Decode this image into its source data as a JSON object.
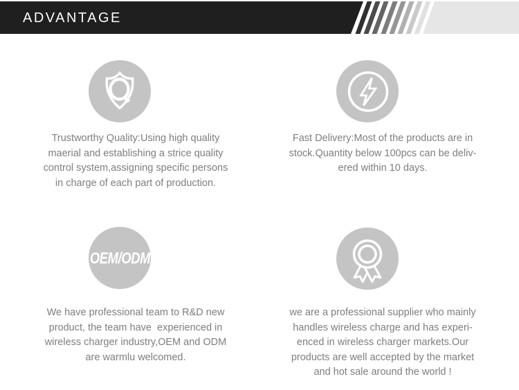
{
  "header": {
    "title": "ADVANTAGE",
    "bg_color": "#1f1f1f",
    "stripe_colors": [
      "#303030",
      "#4a4a4a",
      "#646464",
      "#7d7d7d",
      "#969696",
      "#b0b0b0",
      "#c9c9c9",
      "#e0e0e0"
    ],
    "tail_color": "#e6e6e6"
  },
  "features": [
    {
      "id": "trustworthy-quality",
      "icon": "shield-q-icon",
      "text": "Trustworthy Quality:Using high quality\nmaerial and establishing a strice quality\ncontrol system,assigning specific persons\nin charge of each part of production."
    },
    {
      "id": "fast-delivery",
      "icon": "lightning-bolt-icon",
      "text": "Fast Delivery:Most of the products are in\nstock.Quantity below 100pcs can be deliv-\nered within 10 days."
    },
    {
      "id": "oem-odm",
      "icon": "oem-odm-badge",
      "badge_label": "OEM/ODM",
      "text": "We have professional team to R&D new\nproduct, the team have  experienced in\nwireless charger industry,OEM and ODM\nare warmlu welcomed."
    },
    {
      "id": "professional-supplier",
      "icon": "award-medal-icon",
      "text": "we are a professional supplier who mainly\nhandles wireless charge and has experi-\nenced in wireless charger markets.Our\nproducts are well accepted by the market\nand hot sale around the world !"
    }
  ],
  "colors": {
    "icon_circle": "#c4c4c4",
    "icon_stroke": "#ffffff",
    "body_text": "#7e7e7e",
    "page_bg": "#ffffff"
  }
}
